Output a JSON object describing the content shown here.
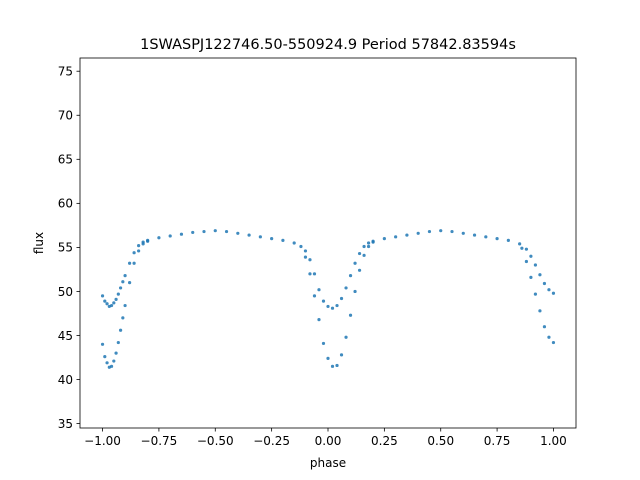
{
  "chart_data": {
    "type": "scatter",
    "title": "1SWASPJ122746.50-550924.9 Period 57842.83594s",
    "xlabel": "phase",
    "ylabel": "flux",
    "xlim": [
      -1.1,
      1.1
    ],
    "ylim": [
      34.5,
      76.5
    ],
    "xticks": [
      -1.0,
      -0.75,
      -0.5,
      -0.25,
      0.0,
      0.25,
      0.5,
      0.75,
      1.0
    ],
    "xtick_labels": [
      "−1.00",
      "−0.75",
      "−0.50",
      "−0.25",
      "0.00",
      "0.25",
      "0.50",
      "0.75",
      "1.00"
    ],
    "yticks": [
      35,
      40,
      45,
      50,
      55,
      60,
      65,
      70,
      75
    ],
    "ytick_labels": [
      "35",
      "40",
      "45",
      "50",
      "55",
      "60",
      "65",
      "70",
      "75"
    ],
    "grid": false,
    "marker_color": "#1f77b4",
    "series": [
      {
        "x": [
          -1.0,
          -0.99,
          -0.98,
          -0.97,
          -0.96,
          -0.95,
          -0.94,
          -0.93,
          -0.92,
          -0.91,
          -0.9,
          -0.88,
          -0.86,
          -0.84,
          -0.82,
          -0.8,
          -0.75,
          -0.7,
          -0.65,
          -0.6,
          -0.55,
          -0.5,
          -0.45,
          -0.4,
          -0.35,
          -0.3,
          -0.25,
          -0.2,
          -0.15,
          -0.12,
          -0.1,
          -0.08,
          -0.06,
          -0.04,
          -0.02,
          0.0,
          0.02,
          0.04,
          0.06,
          0.08,
          0.1,
          0.12,
          0.14,
          0.16,
          0.18,
          0.2,
          0.25,
          0.3,
          0.35,
          0.4,
          0.45,
          0.5,
          0.55,
          0.6,
          0.65,
          0.7,
          0.75,
          0.8,
          0.85,
          0.88,
          0.9,
          0.92,
          0.94,
          0.96,
          0.98,
          1.0
        ],
        "y": [
          49.5,
          48.9,
          48.6,
          48.3,
          48.4,
          48.7,
          49.1,
          49.7,
          50.4,
          51.1,
          51.8,
          53.2,
          54.4,
          55.2,
          55.6,
          55.8,
          56.1,
          56.3,
          56.5,
          56.7,
          56.8,
          56.9,
          56.8,
          56.6,
          56.4,
          56.2,
          56.0,
          55.8,
          55.5,
          55.1,
          54.6,
          53.6,
          52.0,
          50.2,
          48.9,
          48.3,
          48.1,
          48.4,
          49.2,
          50.4,
          51.8,
          53.2,
          54.3,
          55.1,
          55.5,
          55.7,
          56.0,
          56.2,
          56.4,
          56.6,
          56.8,
          56.9,
          56.8,
          56.6,
          56.4,
          56.2,
          56.0,
          55.8,
          55.4,
          54.8,
          54.0,
          53.0,
          51.9,
          50.9,
          50.2,
          49.8
        ]
      },
      {
        "x": [
          -1.0,
          -0.99,
          -0.98,
          -0.97,
          -0.96,
          -0.95,
          -0.94,
          -0.93,
          -0.92,
          -0.91,
          -0.9,
          -0.88,
          -0.86,
          -0.84,
          -0.82,
          -0.8,
          -0.1,
          -0.08,
          -0.06,
          -0.04,
          -0.02,
          0.0,
          0.02,
          0.04,
          0.06,
          0.08,
          0.1,
          0.12,
          0.14,
          0.16,
          0.18,
          0.2,
          0.86,
          0.88,
          0.9,
          0.92,
          0.94,
          0.96,
          0.98,
          1.0
        ],
        "y": [
          44.0,
          42.6,
          41.9,
          41.4,
          41.5,
          42.1,
          43.0,
          44.2,
          45.6,
          47.0,
          48.4,
          51.0,
          53.2,
          54.6,
          55.4,
          55.7,
          53.9,
          52.0,
          49.5,
          46.8,
          44.1,
          42.4,
          41.5,
          41.6,
          42.8,
          44.8,
          47.3,
          50.0,
          52.4,
          54.1,
          55.1,
          55.6,
          54.9,
          53.4,
          51.6,
          49.7,
          47.8,
          46.0,
          44.8,
          44.2
        ]
      }
    ]
  }
}
